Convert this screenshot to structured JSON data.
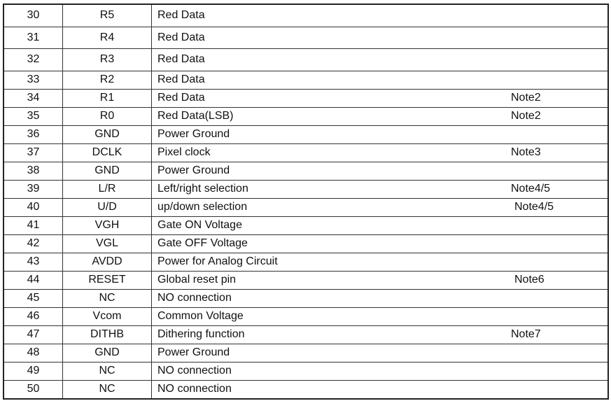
{
  "table": {
    "rows": [
      {
        "pin": "30",
        "symbol": "R5",
        "description": "Red Data",
        "note": ""
      },
      {
        "pin": "31",
        "symbol": "R4",
        "description": "Red Data",
        "note": ""
      },
      {
        "pin": "32",
        "symbol": "R3",
        "description": "Red Data",
        "note": ""
      },
      {
        "pin": "33",
        "symbol": "R2",
        "description": "Red Data",
        "note": ""
      },
      {
        "pin": "34",
        "symbol": "R1",
        "description": "Red Data",
        "note": "Note2"
      },
      {
        "pin": "35",
        "symbol": "R0",
        "description": "Red Data(LSB)",
        "note": "Note2"
      },
      {
        "pin": "36",
        "symbol": "GND",
        "description": "Power Ground",
        "note": ""
      },
      {
        "pin": "37",
        "symbol": "DCLK",
        "description": "Pixel clock",
        "note": "Note3"
      },
      {
        "pin": "38",
        "symbol": "GND",
        "description": "Power Ground",
        "note": ""
      },
      {
        "pin": "39",
        "symbol": "L/R",
        "description": "Left/right selection",
        "note": "Note4/5"
      },
      {
        "pin": "40",
        "symbol": "U/D",
        "description": "up/down selection",
        "note": "Note4/5"
      },
      {
        "pin": "41",
        "symbol": "VGH",
        "description": "Gate ON Voltage",
        "note": ""
      },
      {
        "pin": "42",
        "symbol": "VGL",
        "description": "Gate OFF Voltage",
        "note": ""
      },
      {
        "pin": "43",
        "symbol": "AVDD",
        "description": "Power for Analog Circuit",
        "note": ""
      },
      {
        "pin": "44",
        "symbol": "RESET",
        "description": "Global reset pin",
        "note": "Note6"
      },
      {
        "pin": "45",
        "symbol": "NC",
        "description": "NO connection",
        "note": ""
      },
      {
        "pin": "46",
        "symbol": "Vcom",
        "description": "Common Voltage",
        "note": ""
      },
      {
        "pin": "47",
        "symbol": "DITHB",
        "description": "Dithering function",
        "note": "Note7"
      },
      {
        "pin": "48",
        "symbol": "GND",
        "description": "Power Ground",
        "note": ""
      },
      {
        "pin": "49",
        "symbol": "NC",
        "description": "NO connection",
        "note": ""
      },
      {
        "pin": "50",
        "symbol": "NC",
        "description": "NO connection",
        "note": ""
      }
    ]
  }
}
